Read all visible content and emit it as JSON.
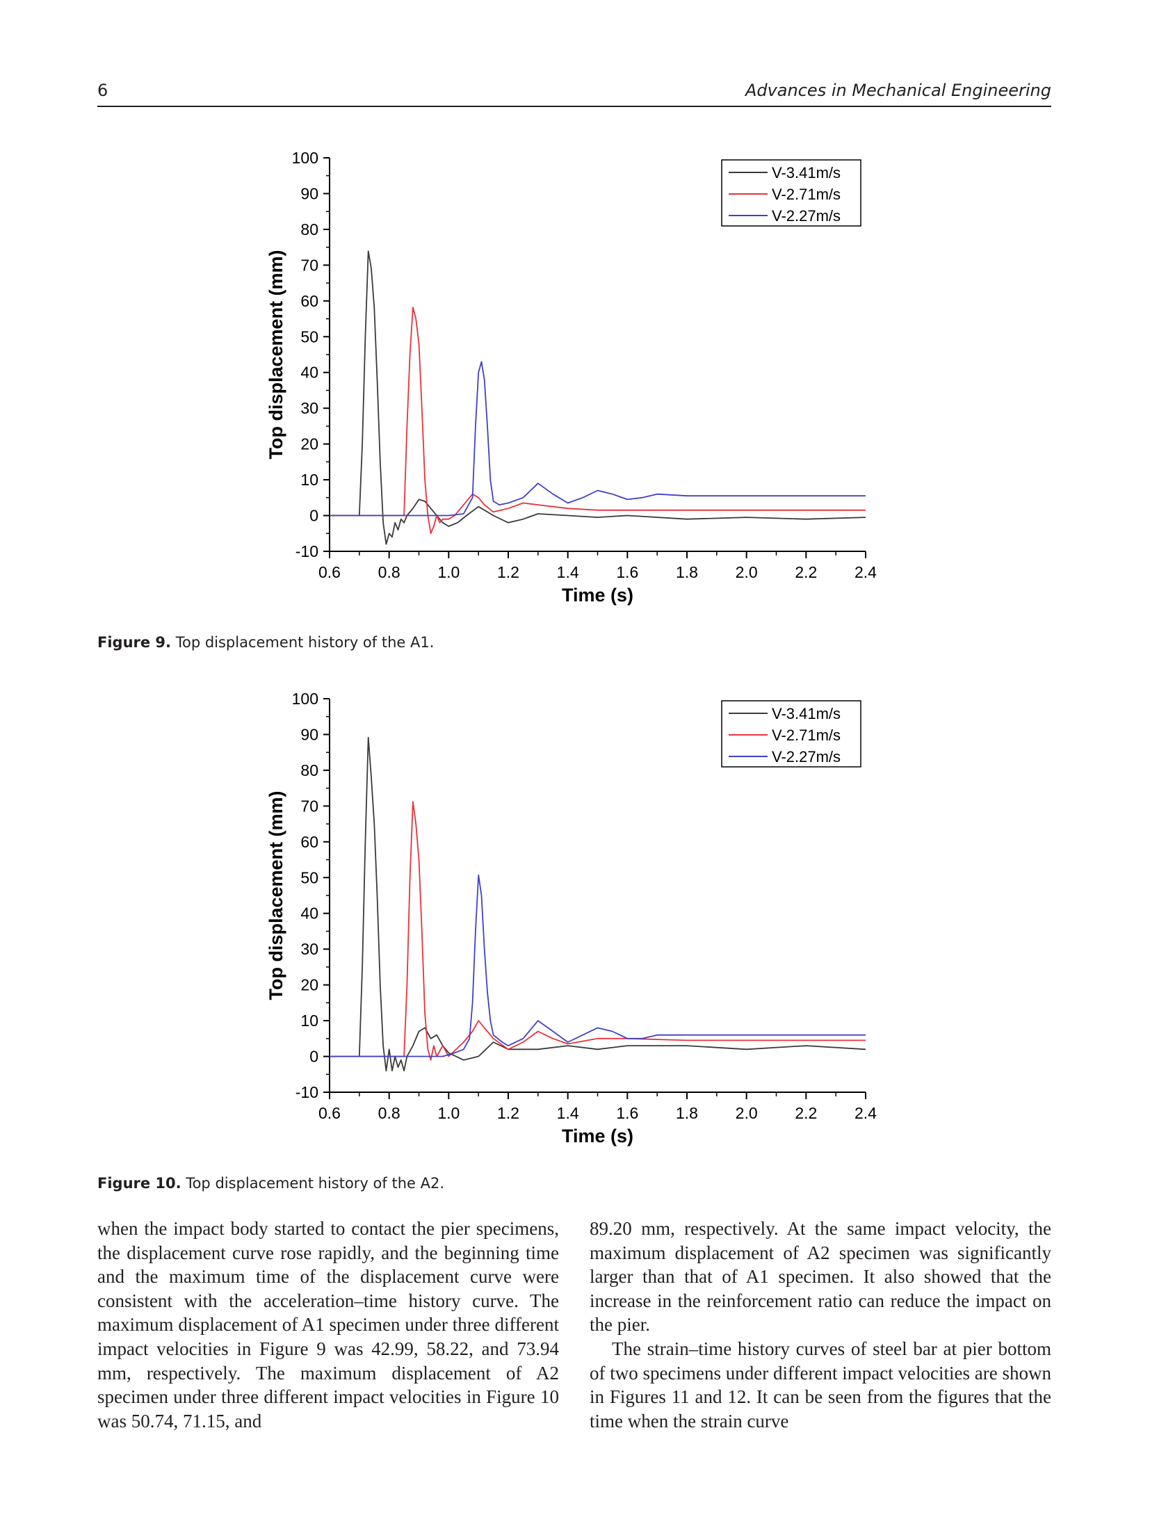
{
  "header": {
    "page_number": "6",
    "journal": "Advances in Mechanical Engineering"
  },
  "figures": [
    {
      "label": "Figure 9.",
      "caption": "Top displacement history of the A1."
    },
    {
      "label": "Figure 10.",
      "caption": "Top displacement history of the A2."
    }
  ],
  "chart_data": [
    {
      "type": "line",
      "xlabel": "Time (s)",
      "ylabel": "Top displacement (mm)",
      "xlim": [
        0.6,
        2.4
      ],
      "ylim": [
        -10,
        100
      ],
      "xticks": [
        "0.6",
        "0.8",
        "1.0",
        "1.2",
        "1.4",
        "1.6",
        "1.8",
        "2.0",
        "2.2",
        "2.4"
      ],
      "yticks": [
        "-10",
        "0",
        "10",
        "20",
        "30",
        "40",
        "50",
        "60",
        "70",
        "80",
        "90",
        "100"
      ],
      "legend_position": "top-right",
      "grid": false,
      "series": [
        {
          "name": "V-3.41m/s",
          "color": "#3a3a3a",
          "x": [
            0.6,
            0.7,
            0.71,
            0.72,
            0.73,
            0.74,
            0.75,
            0.76,
            0.77,
            0.78,
            0.79,
            0.8,
            0.81,
            0.82,
            0.83,
            0.84,
            0.85,
            0.86,
            0.88,
            0.9,
            0.92,
            0.95,
            0.98,
            1.0,
            1.03,
            1.06,
            1.1,
            1.15,
            1.2,
            1.25,
            1.3,
            1.4,
            1.5,
            1.6,
            1.8,
            2.0,
            2.2,
            2.4
          ],
          "y": [
            0,
            0,
            20,
            50,
            73.9,
            69,
            58,
            38,
            15,
            -2,
            -8,
            -5,
            -6,
            -2,
            -4,
            -1,
            -2,
            0,
            2,
            4.5,
            4,
            1,
            -2,
            -3,
            -2,
            0,
            2.5,
            0,
            -2,
            -1,
            0.5,
            0,
            -0.5,
            0,
            -1,
            -0.5,
            -1,
            -0.5
          ]
        },
        {
          "name": "V-2.71m/s",
          "color": "#e8323c",
          "x": [
            0.6,
            0.85,
            0.86,
            0.87,
            0.88,
            0.89,
            0.9,
            0.91,
            0.92,
            0.93,
            0.94,
            0.95,
            0.96,
            0.97,
            0.98,
            1.0,
            1.02,
            1.05,
            1.08,
            1.1,
            1.12,
            1.15,
            1.2,
            1.25,
            1.3,
            1.4,
            1.5,
            1.6,
            1.8,
            2.0,
            2.2,
            2.4
          ],
          "y": [
            0,
            0,
            25,
            45,
            58.2,
            55,
            48,
            30,
            10,
            0,
            -5,
            -3,
            0,
            -2,
            -1,
            -1,
            0,
            3,
            6,
            5,
            3,
            1,
            2,
            3.5,
            3,
            2,
            1.5,
            1.5,
            1.5,
            1.5,
            1.5,
            1.5
          ]
        },
        {
          "name": "V-2.27m/s",
          "color": "#4040c8",
          "x": [
            0.6,
            1.0,
            1.05,
            1.08,
            1.09,
            1.1,
            1.11,
            1.12,
            1.13,
            1.14,
            1.15,
            1.17,
            1.2,
            1.25,
            1.3,
            1.35,
            1.4,
            1.45,
            1.5,
            1.55,
            1.6,
            1.65,
            1.7,
            1.8,
            1.9,
            2.0,
            2.2,
            2.4
          ],
          "y": [
            0,
            0,
            0.5,
            5,
            25,
            40,
            43,
            38,
            25,
            10,
            4,
            3,
            3.5,
            5,
            9,
            6,
            3.5,
            5,
            7,
            6,
            4.5,
            5,
            6,
            5.5,
            5.5,
            5.5,
            5.5,
            5.5
          ]
        }
      ]
    },
    {
      "type": "line",
      "xlabel": "Time (s)",
      "ylabel": "Top displacement (mm)",
      "xlim": [
        0.6,
        2.4
      ],
      "ylim": [
        -10,
        100
      ],
      "xticks": [
        "0.6",
        "0.8",
        "1.0",
        "1.2",
        "1.4",
        "1.6",
        "1.8",
        "2.0",
        "2.2",
        "2.4"
      ],
      "yticks": [
        "-10",
        "0",
        "10",
        "20",
        "30",
        "40",
        "50",
        "60",
        "70",
        "80",
        "90",
        "100"
      ],
      "legend_position": "top-right",
      "grid": false,
      "series": [
        {
          "name": "V-3.41m/s",
          "color": "#3a3a3a",
          "x": [
            0.6,
            0.7,
            0.71,
            0.72,
            0.73,
            0.74,
            0.75,
            0.76,
            0.77,
            0.78,
            0.79,
            0.8,
            0.81,
            0.82,
            0.83,
            0.84,
            0.85,
            0.86,
            0.88,
            0.9,
            0.92,
            0.94,
            0.96,
            0.98,
            1.0,
            1.05,
            1.1,
            1.15,
            1.2,
            1.3,
            1.4,
            1.5,
            1.6,
            1.8,
            2.0,
            2.2,
            2.4
          ],
          "y": [
            0,
            0,
            25,
            60,
            89.2,
            78,
            65,
            45,
            20,
            3,
            -4,
            2,
            -4,
            0,
            -3,
            -1,
            -4,
            0,
            3,
            7,
            8,
            5,
            6,
            3,
            1,
            -1,
            0,
            4,
            2,
            2,
            3,
            2,
            3,
            3,
            2,
            3,
            2
          ]
        },
        {
          "name": "V-2.71m/s",
          "color": "#e8323c",
          "x": [
            0.6,
            0.85,
            0.86,
            0.87,
            0.88,
            0.89,
            0.9,
            0.91,
            0.92,
            0.93,
            0.94,
            0.95,
            0.96,
            0.98,
            1.0,
            1.05,
            1.08,
            1.1,
            1.12,
            1.15,
            1.2,
            1.25,
            1.3,
            1.35,
            1.4,
            1.5,
            1.6,
            1.8,
            2.0,
            2.2,
            2.4
          ],
          "y": [
            0,
            0,
            20,
            50,
            71.2,
            65,
            55,
            35,
            12,
            2,
            -1,
            3,
            0,
            3,
            0,
            4,
            7,
            10,
            8,
            5,
            2,
            4,
            7,
            5,
            3.5,
            5,
            5,
            4.5,
            4.5,
            4.5,
            4.5
          ]
        },
        {
          "name": "V-2.27m/s",
          "color": "#4040c8",
          "x": [
            0.6,
            0.98,
            1.02,
            1.05,
            1.07,
            1.08,
            1.09,
            1.1,
            1.11,
            1.12,
            1.13,
            1.14,
            1.15,
            1.18,
            1.2,
            1.25,
            1.3,
            1.35,
            1.4,
            1.45,
            1.5,
            1.55,
            1.6,
            1.65,
            1.7,
            1.8,
            1.9,
            2.0,
            2.2,
            2.4
          ],
          "y": [
            0,
            0,
            1,
            2,
            5,
            15,
            35,
            50.7,
            45,
            30,
            18,
            10,
            6,
            4,
            3,
            5,
            10,
            7,
            4,
            6,
            8,
            7,
            5,
            5,
            6,
            6,
            6,
            6,
            6,
            6
          ]
        }
      ]
    }
  ],
  "body": {
    "left_column": "when the impact body started to contact the pier specimens, the displacement curve rose rapidly, and the beginning time and the maximum time of the displacement curve were consistent with the acceleration–time history curve. The maximum displacement of A1 specimen under three different impact velocities in Figure 9 was 42.99, 58.22, and 73.94 mm, respectively. The maximum displacement of A2 specimen under three different impact velocities in Figure 10 was 50.74, 71.15, and",
    "right_column_p1": "89.20 mm, respectively. At the same impact velocity, the maximum displacement of A2 specimen was significantly larger than that of A1 specimen. It also showed that the increase in the reinforcement ratio can reduce the impact on the pier.",
    "right_column_p2": "The strain–time history curves of steel bar at pier bottom of two specimens under different impact velocities are shown in Figures 11 and 12. It can be seen from the figures that the time when the strain curve"
  }
}
